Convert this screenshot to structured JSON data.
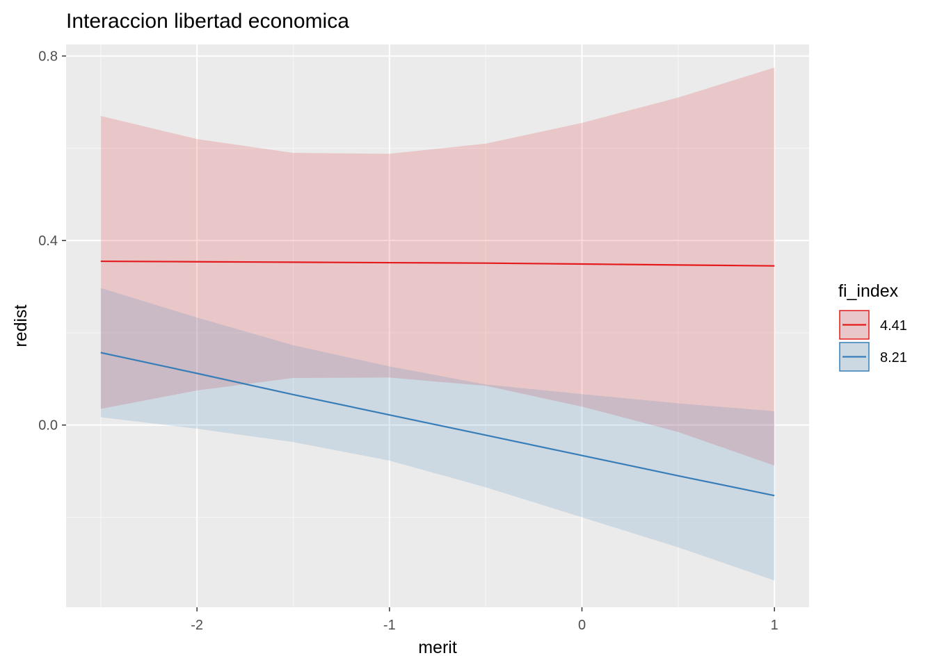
{
  "chart_data": {
    "type": "line",
    "title": "Interaccion libertad economica",
    "xlabel": "merit",
    "ylabel": "redist",
    "xlim": [
      -2.68,
      1.18
    ],
    "ylim": [
      -0.395,
      0.825
    ],
    "x_ticks": [
      -2,
      -1,
      0,
      1
    ],
    "x_tick_labels": [
      "-2",
      "-1",
      "0",
      "1"
    ],
    "y_ticks": [
      0.0,
      0.4,
      0.8
    ],
    "y_tick_labels": [
      "0.0",
      "0.4",
      "0.8"
    ],
    "grid": true,
    "legend": {
      "title": "fi_index",
      "position": "right"
    },
    "series": [
      {
        "name": "4.41",
        "color": "#e41a1c",
        "fill": "#e8b4b8",
        "x": [
          -2.5,
          -2.0,
          -1.5,
          -1.0,
          -0.5,
          0.0,
          0.5,
          1.0
        ],
        "y": [
          0.355,
          0.354,
          0.353,
          0.352,
          0.351,
          0.349,
          0.347,
          0.345
        ],
        "ymin": [
          0.035,
          0.075,
          0.102,
          0.103,
          0.085,
          0.04,
          -0.015,
          -0.088
        ],
        "ymax": [
          0.67,
          0.62,
          0.59,
          0.588,
          0.61,
          0.655,
          0.71,
          0.775
        ]
      },
      {
        "name": "8.21",
        "color": "#377eb8",
        "fill": "#c4d3e0",
        "x": [
          -2.5,
          -2.0,
          -1.5,
          -1.0,
          -0.5,
          0.0,
          0.5,
          1.0
        ],
        "y": [
          0.157,
          0.112,
          0.066,
          0.022,
          -0.022,
          -0.066,
          -0.11,
          -0.153
        ],
        "ymin": [
          0.017,
          -0.008,
          -0.037,
          -0.077,
          -0.135,
          -0.2,
          -0.265,
          -0.337
        ],
        "ymax": [
          0.297,
          0.233,
          0.173,
          0.127,
          0.088,
          0.067,
          0.047,
          0.03
        ]
      }
    ]
  }
}
